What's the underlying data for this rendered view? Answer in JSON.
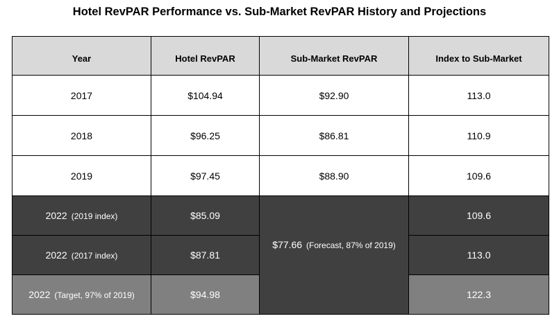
{
  "title": "Hotel RevPAR Performance vs. Sub-Market RevPAR History and Projections",
  "headers": [
    "Year",
    "Hotel RevPAR",
    "Sub-Market RevPAR",
    "Index to Sub-Market"
  ],
  "history": [
    {
      "year": "2017",
      "hotel": "$104.94",
      "sub": "$92.90",
      "index": "113.0"
    },
    {
      "year": "2018",
      "hotel": "$96.25",
      "sub": "$86.81",
      "index": "110.9"
    },
    {
      "year": "2019",
      "hotel": "$97.45",
      "sub": "$88.90",
      "index": "109.6"
    }
  ],
  "projections": [
    {
      "year": "2022",
      "note": "(2019 index)",
      "hotel": "$85.09",
      "index": "109.6"
    },
    {
      "year": "2022",
      "note": "(2017 index)",
      "hotel": "$87.81",
      "index": "113.0"
    },
    {
      "year": "2022",
      "note": "(Target, 97% of 2019)",
      "hotel": "$94.98",
      "index": "122.3"
    }
  ],
  "forecast": {
    "value": "$77.66",
    "note": "(Forecast, 87% of 2019)"
  },
  "colors": {
    "header_bg": "#d9d9d9",
    "dark_row": "#404040",
    "gray_row": "#808080"
  }
}
